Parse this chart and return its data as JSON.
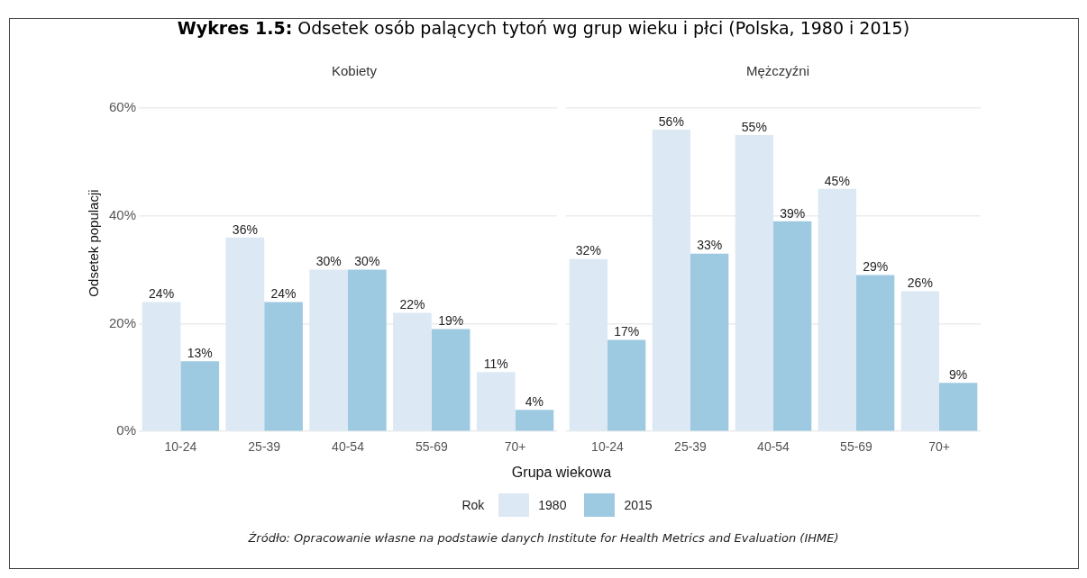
{
  "chart_data": [
    {
      "type": "bar",
      "title": "Wykres 1.5: Odsetek osób palących tytoń wg grup wieku i płci (Polska, 1980 i 2015)",
      "subtitle": "Kobiety",
      "ylabel": "Odsetek populacji",
      "xlabel": "Grupa wiekowa",
      "legend": "bottom",
      "legend_title": "Rok",
      "grid": "y",
      "categories": [
        "10-24",
        "25-39",
        "40-54",
        "55-69",
        "70+"
      ],
      "ylim": [
        0,
        60
      ],
      "yticks": [
        {
          "value": 0,
          "label": "0%"
        },
        {
          "value": 20,
          "label": "20%"
        },
        {
          "value": 40,
          "label": "40%"
        },
        {
          "value": 60,
          "label": "60%"
        }
      ],
      "series": [
        {
          "name": "1980",
          "color": "#dce8f4",
          "values": [
            24,
            36,
            30,
            22,
            11
          ],
          "value_labels": [
            "24%",
            "36%",
            "30%",
            "22%",
            "11%"
          ]
        },
        {
          "name": "2015",
          "color": "#9ecae1",
          "values": [
            13,
            24,
            30,
            19,
            4
          ],
          "value_labels": [
            "13%",
            "24%",
            "30%",
            "19%",
            "4%"
          ]
        }
      ]
    },
    {
      "type": "bar",
      "subtitle": "Mężczyźni",
      "grid": "y",
      "tick_labels": "x",
      "categories": [
        "10-24",
        "25-39",
        "40-54",
        "55-69",
        "70+"
      ],
      "ylim": [
        0,
        60
      ],
      "yticks": [
        {
          "value": 0,
          "label": null
        },
        {
          "value": 20,
          "label": null
        },
        {
          "value": 40,
          "label": null
        },
        {
          "value": 60,
          "label": null
        }
      ],
      "annotations": [
        "Źródło: Opracowanie własne na podstawie danych Institute for Health Metrics and Evaluation (IHME)"
      ],
      "series": [
        {
          "color": "#dce8f4",
          "values": [
            32,
            56,
            55,
            45,
            26
          ],
          "value_labels": [
            "32%",
            "56%",
            "55%",
            "45%",
            "26%"
          ]
        },
        {
          "color": "#9ecae1",
          "values": [
            17,
            33,
            39,
            29,
            9
          ],
          "value_labels": [
            "17%",
            "33%",
            "39%",
            "29%",
            "9%"
          ]
        }
      ]
    }
  ]
}
